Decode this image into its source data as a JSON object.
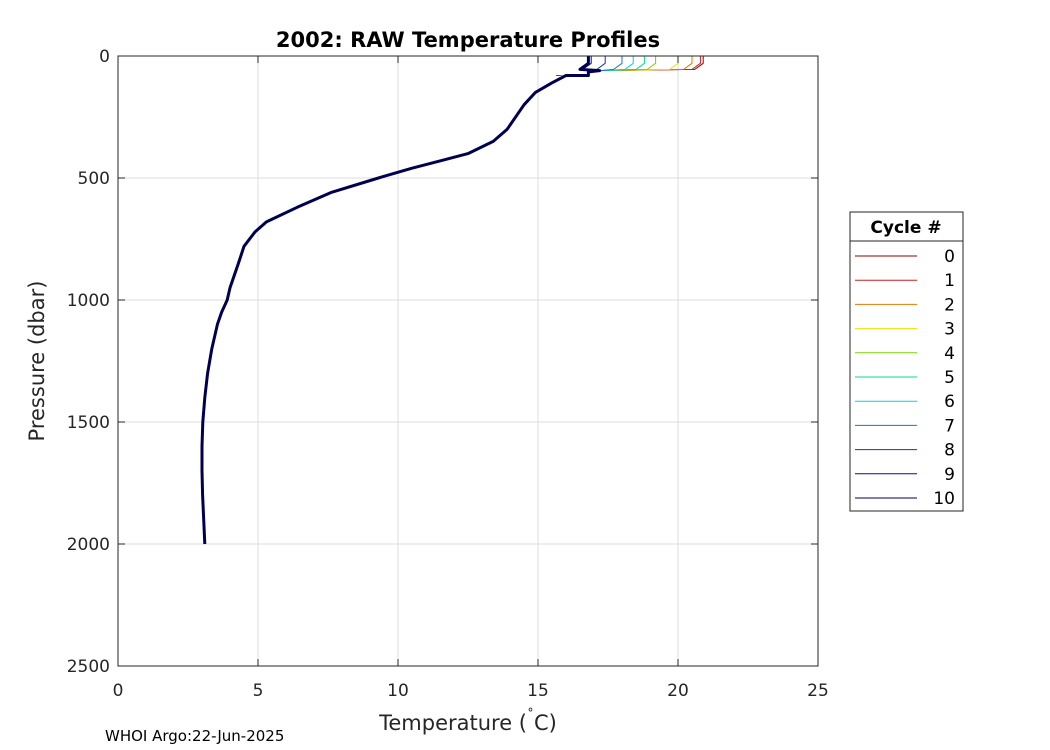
{
  "chart_data": {
    "type": "line",
    "title": "2002: RAW Temperature Profiles",
    "xlabel": "Temperature (",
    "xlabel_unit": "C)",
    "xlabel_degree": "˚",
    "ylabel": "Pressure (dbar)",
    "xlim": [
      0,
      25
    ],
    "ylim": [
      0,
      2500
    ],
    "y_reversed": true,
    "x_ticks": [
      0,
      5,
      10,
      15,
      20,
      25
    ],
    "y_ticks": [
      0,
      500,
      1000,
      1500,
      2000,
      2500
    ],
    "x_tick_labels": [
      "0",
      "5",
      "10",
      "15",
      "20",
      "25"
    ],
    "y_tick_labels": [
      "0",
      "500",
      "1000",
      "1500",
      "2000",
      "2500"
    ],
    "grid": true,
    "legend_title": "Cycle #",
    "legend_placement": "right",
    "footer": "WHOI Argo:22-Jun-2025",
    "series": [
      {
        "name": "0",
        "color": "#8b0000",
        "surface_temp": 20.9,
        "offset": -0.35,
        "max_p": 80
      },
      {
        "name": "1",
        "color": "#c81e1e",
        "surface_temp": 20.8,
        "offset": -0.3,
        "max_p": 80
      },
      {
        "name": "2",
        "color": "#e07800",
        "surface_temp": 20.5,
        "offset": -0.2,
        "max_p": 80
      },
      {
        "name": "3",
        "color": "#e6e600",
        "surface_temp": 20.0,
        "offset": -0.15,
        "max_p": 80
      },
      {
        "name": "4",
        "color": "#7dd200",
        "surface_temp": 19.2,
        "offset": -0.1,
        "max_p": 80
      },
      {
        "name": "5",
        "color": "#00dc8c",
        "surface_temp": 18.8,
        "offset": -0.05,
        "max_p": 80
      },
      {
        "name": "6",
        "color": "#00d2e6",
        "surface_temp": 18.4,
        "offset": 0.1,
        "max_p": 80
      },
      {
        "name": "7",
        "color": "#1e6ed2",
        "surface_temp": 18.0,
        "offset": 0.05,
        "max_p": 80
      },
      {
        "name": "8",
        "color": "#1432b4",
        "surface_temp": 17.4,
        "offset": 0.0,
        "max_p": 80
      },
      {
        "name": "9",
        "color": "#0a0a96",
        "surface_temp": 16.9,
        "offset": 0.02,
        "max_p": 80
      },
      {
        "name": "10",
        "color": "#000050",
        "surface_temp": 16.8,
        "offset": 0.0,
        "max_p": 2000
      }
    ],
    "base_profile": {
      "pressure": [
        80,
        110,
        150,
        200,
        300,
        350,
        400,
        430,
        460,
        500,
        560,
        620,
        680,
        720,
        780,
        850,
        950,
        1000,
        1050,
        1100,
        1200,
        1300,
        1400,
        1500,
        1600,
        1700,
        1800,
        1900,
        2000
      ],
      "temperature": [
        16.0,
        15.5,
        14.9,
        14.5,
        13.9,
        13.4,
        12.5,
        11.5,
        10.5,
        9.3,
        7.6,
        6.4,
        5.3,
        4.9,
        4.5,
        4.3,
        4.0,
        3.9,
        3.7,
        3.55,
        3.35,
        3.2,
        3.1,
        3.03,
        3.0,
        3.0,
        3.02,
        3.06,
        3.1
      ]
    }
  }
}
